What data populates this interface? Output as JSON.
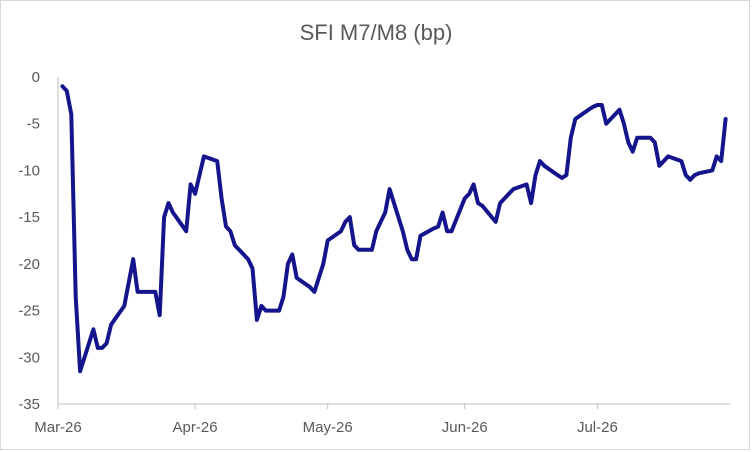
{
  "chart_data": {
    "type": "line",
    "title": "SFI M7/M8 (bp)",
    "xlabel": "",
    "ylabel": "",
    "ylim": [
      -35,
      0
    ],
    "yticks": [
      0,
      -5,
      -10,
      -15,
      -20,
      -25,
      -30,
      -35
    ],
    "xlim": [
      "2026-03-01",
      "2026-07-31"
    ],
    "xticks": [
      {
        "date": "2026-03-01",
        "label": "Mar-26"
      },
      {
        "date": "2026-04-01",
        "label": "Apr-26"
      },
      {
        "date": "2026-05-01",
        "label": "May-26"
      },
      {
        "date": "2026-06-01",
        "label": "Jun-26"
      },
      {
        "date": "2026-07-01",
        "label": "Jul-26"
      }
    ],
    "grid": false,
    "legend": "none",
    "series": [
      {
        "color": "#14148c",
        "points": [
          [
            "2026-03-02",
            -1.0
          ],
          [
            "2026-03-03",
            -1.5
          ],
          [
            "2026-03-04",
            -4.0
          ],
          [
            "2026-03-05",
            -23.5
          ],
          [
            "2026-03-06",
            -31.5
          ],
          [
            "2026-03-09",
            -27.0
          ],
          [
            "2026-03-10",
            -29.0
          ],
          [
            "2026-03-11",
            -29.0
          ],
          [
            "2026-03-12",
            -28.5
          ],
          [
            "2026-03-13",
            -26.5
          ],
          [
            "2026-03-16",
            -24.5
          ],
          [
            "2026-03-18",
            -19.5
          ],
          [
            "2026-03-19",
            -23.0
          ],
          [
            "2026-03-20",
            -23.0
          ],
          [
            "2026-03-23",
            -23.0
          ],
          [
            "2026-03-24",
            -25.5
          ],
          [
            "2026-03-25",
            -15.0
          ],
          [
            "2026-03-26",
            -13.5
          ],
          [
            "2026-03-27",
            -14.5
          ],
          [
            "2026-03-30",
            -16.5
          ],
          [
            "2026-03-31",
            -11.5
          ],
          [
            "2026-04-01",
            -12.5
          ],
          [
            "2026-04-03",
            -8.5
          ],
          [
            "2026-04-06",
            -9.0
          ],
          [
            "2026-04-07",
            -13.0
          ],
          [
            "2026-04-08",
            -16.0
          ],
          [
            "2026-04-09",
            -16.5
          ],
          [
            "2026-04-10",
            -18.0
          ],
          [
            "2026-04-13",
            -19.5
          ],
          [
            "2026-04-14",
            -20.5
          ],
          [
            "2026-04-15",
            -26.0
          ],
          [
            "2026-04-16",
            -24.5
          ],
          [
            "2026-04-17",
            -25.0
          ],
          [
            "2026-04-20",
            -25.0
          ],
          [
            "2026-04-21",
            -23.5
          ],
          [
            "2026-04-22",
            -20.0
          ],
          [
            "2026-04-23",
            -19.0
          ],
          [
            "2026-04-24",
            -21.5
          ],
          [
            "2026-04-27",
            -22.5
          ],
          [
            "2026-04-28",
            -23.0
          ],
          [
            "2026-04-29",
            -21.5
          ],
          [
            "2026-04-30",
            -20.0
          ],
          [
            "2026-05-01",
            -17.5
          ],
          [
            "2026-05-04",
            -16.5
          ],
          [
            "2026-05-05",
            -15.5
          ],
          [
            "2026-05-06",
            -15.0
          ],
          [
            "2026-05-07",
            -18.0
          ],
          [
            "2026-05-08",
            -18.5
          ],
          [
            "2026-05-11",
            -18.5
          ],
          [
            "2026-05-12",
            -16.5
          ],
          [
            "2026-05-13",
            -15.5
          ],
          [
            "2026-05-14",
            -14.5
          ],
          [
            "2026-05-15",
            -12.0
          ],
          [
            "2026-05-18",
            -16.5
          ],
          [
            "2026-05-19",
            -18.5
          ],
          [
            "2026-05-20",
            -19.5
          ],
          [
            "2026-05-21",
            -19.5
          ],
          [
            "2026-05-22",
            -17.0
          ],
          [
            "2026-05-25",
            -16.2
          ],
          [
            "2026-05-26",
            -16.0
          ],
          [
            "2026-05-27",
            -14.5
          ],
          [
            "2026-05-28",
            -16.5
          ],
          [
            "2026-05-29",
            -16.5
          ],
          [
            "2026-06-01",
            -13.0
          ],
          [
            "2026-06-02",
            -12.5
          ],
          [
            "2026-06-03",
            -11.5
          ],
          [
            "2026-06-04",
            -13.5
          ],
          [
            "2026-06-05",
            -13.8
          ],
          [
            "2026-06-08",
            -15.5
          ],
          [
            "2026-06-09",
            -13.5
          ],
          [
            "2026-06-10",
            -13.0
          ],
          [
            "2026-06-11",
            -12.5
          ],
          [
            "2026-06-12",
            -12.0
          ],
          [
            "2026-06-15",
            -11.5
          ],
          [
            "2026-06-16",
            -13.5
          ],
          [
            "2026-06-17",
            -10.5
          ],
          [
            "2026-06-18",
            -9.0
          ],
          [
            "2026-06-19",
            -9.5
          ],
          [
            "2026-06-22",
            -10.5
          ],
          [
            "2026-06-23",
            -10.8
          ],
          [
            "2026-06-24",
            -10.5
          ],
          [
            "2026-06-25",
            -6.5
          ],
          [
            "2026-06-26",
            -4.5
          ],
          [
            "2026-06-29",
            -3.5
          ],
          [
            "2026-06-30",
            -3.2
          ],
          [
            "2026-07-01",
            -3.0
          ],
          [
            "2026-07-02",
            -3.0
          ],
          [
            "2026-07-03",
            -5.0
          ],
          [
            "2026-07-06",
            -3.5
          ],
          [
            "2026-07-07",
            -5.0
          ],
          [
            "2026-07-08",
            -7.0
          ],
          [
            "2026-07-09",
            -8.0
          ],
          [
            "2026-07-10",
            -6.5
          ],
          [
            "2026-07-13",
            -6.5
          ],
          [
            "2026-07-14",
            -7.0
          ],
          [
            "2026-07-15",
            -9.5
          ],
          [
            "2026-07-16",
            -9.0
          ],
          [
            "2026-07-17",
            -8.5
          ],
          [
            "2026-07-20",
            -9.0
          ],
          [
            "2026-07-21",
            -10.5
          ],
          [
            "2026-07-22",
            -11.0
          ],
          [
            "2026-07-23",
            -10.5
          ],
          [
            "2026-07-24",
            -10.3
          ],
          [
            "2026-07-27",
            -10.0
          ],
          [
            "2026-07-28",
            -8.5
          ],
          [
            "2026-07-29",
            -9.0
          ],
          [
            "2026-07-30",
            -4.5
          ]
        ]
      }
    ]
  }
}
